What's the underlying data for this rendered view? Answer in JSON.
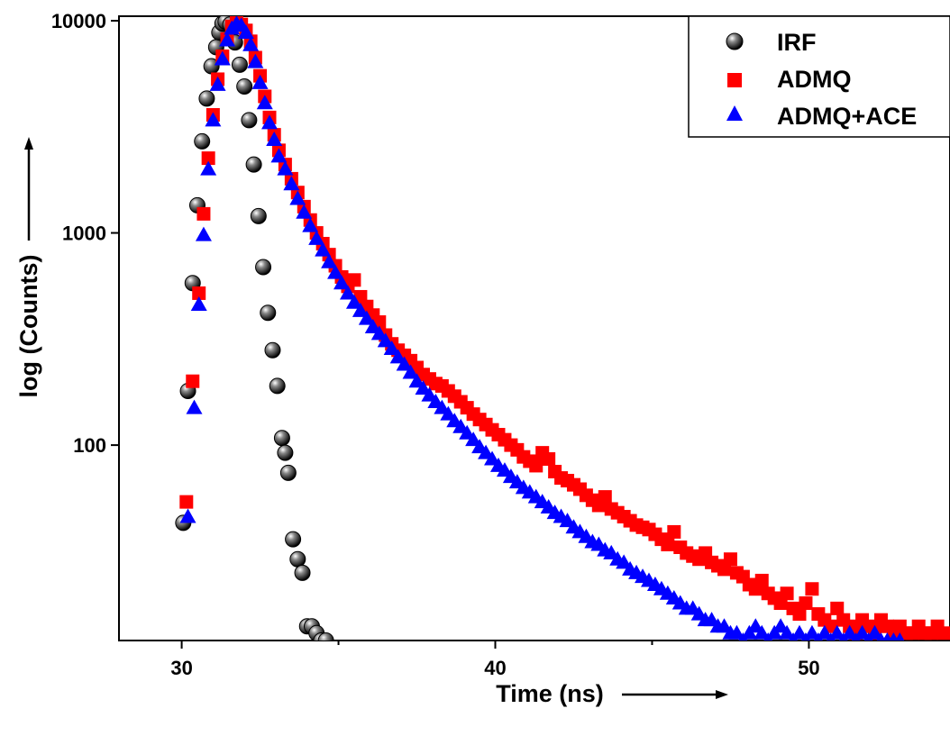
{
  "chart_data": {
    "type": "scatter",
    "title": "",
    "xlabel": "Time (ns)",
    "ylabel": "log (Counts)",
    "xlim": [
      28,
      54.5
    ],
    "ylim": [
      12,
      10500
    ],
    "yscale": "log",
    "xticks": [
      30,
      40,
      50
    ],
    "xtick_labels": [
      "30",
      "40",
      "50"
    ],
    "yticks": [
      100,
      1000,
      10000
    ],
    "ytick_labels": [
      "100",
      "1000",
      "10000"
    ],
    "grid": false,
    "legend_position": "top-right",
    "series": [
      {
        "name": "IRF",
        "marker": "sphere",
        "color": "#000000",
        "x": [
          30.05,
          30.2,
          30.35,
          30.5,
          30.65,
          30.8,
          30.95,
          31.1,
          31.2,
          31.3,
          31.4,
          31.55,
          31.7,
          31.85,
          32.0,
          32.15,
          32.3,
          32.45,
          32.6,
          32.75,
          32.9,
          33.05,
          33.2,
          33.3,
          33.4,
          33.55,
          33.7,
          33.85,
          34.0,
          34.15,
          34.3,
          34.45,
          34.6
        ],
        "y": [
          43,
          180,
          580,
          1350,
          2700,
          4300,
          6100,
          7500,
          8800,
          9700,
          9900,
          9600,
          7900,
          6200,
          4900,
          3400,
          2100,
          1200,
          690,
          420,
          280,
          190,
          108,
          92,
          74,
          36,
          29,
          25,
          14,
          14,
          13,
          12,
          12
        ]
      },
      {
        "name": "ADMQ",
        "marker": "square",
        "color": "#ff0000",
        "x": [
          30.15,
          30.35,
          30.55,
          30.7,
          30.85,
          31.0,
          31.15,
          31.3,
          31.45,
          31.6,
          31.75,
          31.9,
          32.05,
          32.2,
          32.35,
          32.5,
          32.65,
          32.8,
          32.95,
          33.1,
          33.3,
          33.5,
          33.7,
          33.9,
          34.1,
          34.3,
          34.5,
          34.7,
          34.9,
          35.1,
          35.3,
          35.5,
          35.7,
          35.9,
          36.1,
          36.3,
          36.5,
          36.7,
          36.9,
          37.1,
          37.3,
          37.5,
          37.7,
          37.9,
          38.1,
          38.3,
          38.5,
          38.7,
          38.9,
          39.1,
          39.3,
          39.5,
          39.7,
          39.9,
          40.1,
          40.3,
          40.5,
          40.7,
          40.9,
          41.1,
          41.3,
          41.5,
          41.7,
          41.9,
          42.1,
          42.3,
          42.5,
          42.7,
          42.9,
          43.1,
          43.3,
          43.5,
          43.7,
          43.9,
          44.1,
          44.3,
          44.5,
          44.7,
          44.9,
          45.1,
          45.3,
          45.5,
          45.7,
          45.9,
          46.1,
          46.3,
          46.5,
          46.7,
          46.9,
          47.1,
          47.3,
          47.5,
          47.7,
          47.9,
          48.1,
          48.3,
          48.5,
          48.7,
          48.9,
          49.1,
          49.3,
          49.5,
          49.7,
          49.9,
          50.1,
          50.3,
          50.5,
          50.7,
          50.9,
          51.1,
          51.3,
          51.5,
          51.7,
          51.9,
          52.1,
          52.3,
          52.5,
          52.7,
          52.9,
          53.1,
          53.3,
          53.5,
          53.7,
          53.9,
          54.1,
          54.3
        ],
        "y": [
          54,
          200,
          520,
          1230,
          2250,
          3600,
          5300,
          6800,
          8200,
          9400,
          9800,
          9600,
          9000,
          8000,
          6700,
          5500,
          4400,
          3500,
          2900,
          2450,
          2100,
          1800,
          1550,
          1330,
          1150,
          1000,
          890,
          790,
          700,
          620,
          560,
          600,
          500,
          450,
          410,
          380,
          330,
          300,
          280,
          265,
          250,
          232,
          215,
          205,
          195,
          190,
          180,
          170,
          160,
          150,
          140,
          132,
          125,
          118,
          112,
          106,
          100,
          95,
          88,
          84,
          80,
          92,
          86,
          75,
          70,
          68,
          65,
          62,
          58,
          55,
          52,
          57,
          50,
          48,
          46,
          44,
          42,
          41,
          40,
          38,
          36,
          34,
          39,
          33,
          31,
          30,
          29,
          31,
          28,
          27,
          26,
          29,
          25,
          24,
          22,
          21,
          23,
          20,
          19,
          18,
          20,
          17,
          16,
          18,
          21,
          16,
          15,
          14,
          17,
          15,
          14,
          13,
          15,
          14,
          13,
          15,
          14,
          13,
          14,
          13,
          13,
          14,
          13,
          13,
          14,
          13
        ]
      },
      {
        "name": "ADMQ+ACE",
        "marker": "triangle",
        "color": "#0000ff",
        "x": [
          30.2,
          30.4,
          30.55,
          30.7,
          30.85,
          31.0,
          31.15,
          31.3,
          31.45,
          31.6,
          31.75,
          31.9,
          32.05,
          32.2,
          32.35,
          32.5,
          32.65,
          32.8,
          32.95,
          33.1,
          33.3,
          33.5,
          33.7,
          33.9,
          34.1,
          34.3,
          34.5,
          34.7,
          34.9,
          35.1,
          35.3,
          35.5,
          35.7,
          35.9,
          36.1,
          36.3,
          36.5,
          36.7,
          36.9,
          37.1,
          37.3,
          37.5,
          37.7,
          37.9,
          38.1,
          38.3,
          38.5,
          38.7,
          38.9,
          39.1,
          39.3,
          39.5,
          39.7,
          39.9,
          40.1,
          40.3,
          40.5,
          40.7,
          40.9,
          41.1,
          41.3,
          41.5,
          41.7,
          41.9,
          42.1,
          42.3,
          42.5,
          42.7,
          42.9,
          43.1,
          43.3,
          43.5,
          43.7,
          43.9,
          44.1,
          44.3,
          44.5,
          44.7,
          44.9,
          45.1,
          45.3,
          45.5,
          45.7,
          45.9,
          46.1,
          46.3,
          46.5,
          46.7,
          46.9,
          47.1,
          47.3,
          47.5,
          47.7,
          47.9,
          48.1,
          48.3,
          48.5,
          48.7,
          48.9,
          49.1,
          49.3,
          49.5,
          49.7,
          49.9,
          50.1,
          50.3,
          50.5,
          50.7,
          50.9,
          51.1,
          51.3,
          51.5,
          51.7,
          51.9,
          52.1,
          52.3,
          52.5,
          52.7,
          52.9
        ],
        "y": [
          46,
          150,
          460,
          980,
          2000,
          3400,
          5000,
          6600,
          8100,
          9200,
          9700,
          9500,
          8800,
          7700,
          6400,
          5100,
          4100,
          3300,
          2750,
          2300,
          2000,
          1700,
          1450,
          1250,
          1080,
          940,
          830,
          730,
          650,
          580,
          520,
          470,
          430,
          395,
          360,
          335,
          310,
          285,
          260,
          240,
          220,
          200,
          185,
          172,
          160,
          150,
          140,
          130,
          122,
          114,
          106,
          98,
          92,
          86,
          80,
          76,
          71,
          67,
          63,
          60,
          57,
          54,
          51,
          48,
          46,
          44,
          41,
          39,
          37,
          35,
          34,
          32,
          31,
          29,
          28,
          26,
          25,
          24,
          23,
          22,
          21,
          20,
          19,
          18,
          17,
          17,
          16,
          15,
          15,
          14,
          14,
          13,
          13,
          12,
          13,
          14,
          13,
          12,
          13,
          14,
          13,
          12,
          13,
          12,
          13,
          12,
          13,
          12,
          13,
          12,
          13,
          12,
          13,
          12,
          13,
          12,
          12,
          12,
          12
        ]
      }
    ]
  }
}
